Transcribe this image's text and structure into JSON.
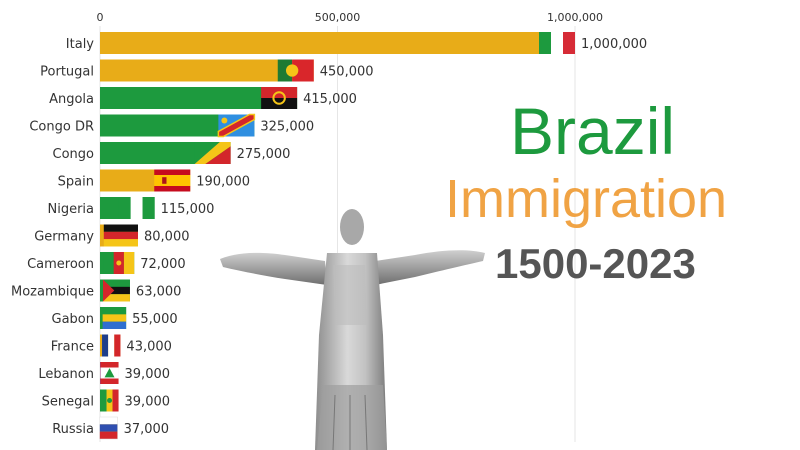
{
  "title": {
    "line1": "Brazil",
    "line2": "Immigration",
    "line3": "1500-2023"
  },
  "colors": {
    "green": "#1d9a3e",
    "orange": "#f0a344",
    "gold": "#e8ac18",
    "title_gray": "#555555"
  },
  "chart_data": {
    "type": "bar",
    "orientation": "horizontal",
    "title": "",
    "xlabel": "",
    "ylabel": "",
    "xlim": [
      0,
      1000000
    ],
    "x_ticks": [
      "0",
      "500,000",
      "1,000,000"
    ],
    "grid": true,
    "categories": [
      "Italy",
      "Portugal",
      "Angola",
      "Congo DR",
      "Congo",
      "Spain",
      "Nigeria",
      "Germany",
      "Cameroon",
      "Mozambique",
      "Gabon",
      "France",
      "Lebanon",
      "Senegal",
      "Russia"
    ],
    "values": [
      1000000,
      450000,
      415000,
      325000,
      275000,
      190000,
      115000,
      80000,
      72000,
      63000,
      55000,
      43000,
      39000,
      39000,
      37000
    ],
    "value_labels": [
      "1,000,000",
      "450,000",
      "415,000",
      "325,000",
      "275,000",
      "190,000",
      "115,000",
      "80,000",
      "72,000",
      "63,000",
      "55,000",
      "43,000",
      "39,000",
      "39,000",
      "37,000"
    ],
    "bar_colors": [
      "#e8ac18",
      "#e8ac18",
      "#1d9a3e",
      "#1d9a3e",
      "#1d9a3e",
      "#e8ac18",
      "#1d9a3e",
      "#e8ac18",
      "#1d9a3e",
      "#1d9a3e",
      "#1d9a3e",
      "#e8ac18",
      "#9a3d7a",
      "#1d9a3e",
      "#e8ac18"
    ],
    "flags": [
      "italy-flag-icon",
      "portugal-flag-icon",
      "angola-flag-icon",
      "congo-dr-flag-icon",
      "congo-flag-icon",
      "spain-flag-icon",
      "nigeria-flag-icon",
      "germany-flag-icon",
      "cameroon-flag-icon",
      "mozambique-flag-icon",
      "gabon-flag-icon",
      "france-flag-icon",
      "lebanon-flag-icon",
      "senegal-flag-icon",
      "russia-flag-icon"
    ]
  },
  "image": {
    "statue": "christ-the-redeemer-statue"
  }
}
